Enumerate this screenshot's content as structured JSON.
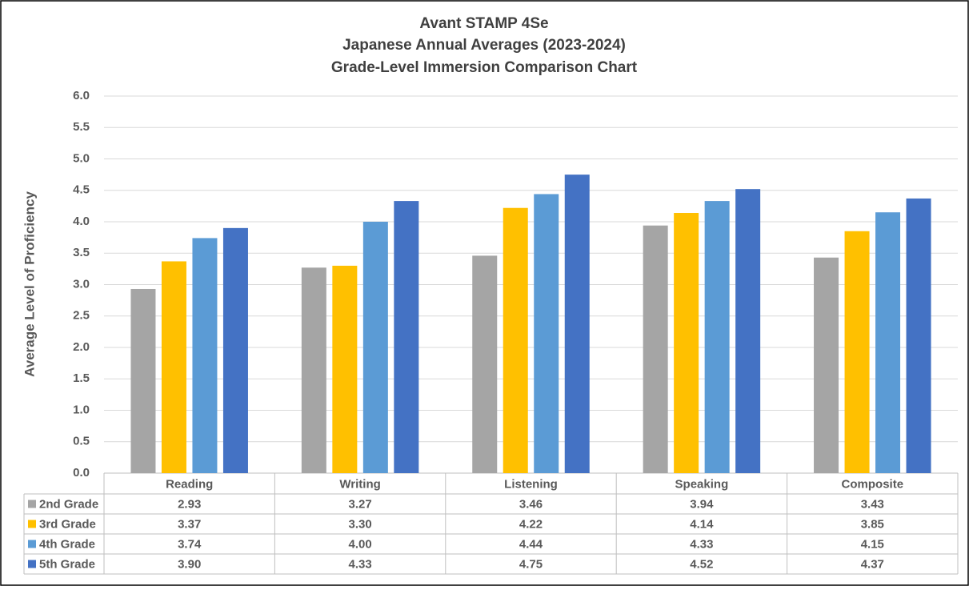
{
  "chart_data": {
    "type": "bar",
    "title": [
      "Avant STAMP 4Se",
      "Japanese Annual Averages (2023-2024)",
      "Grade-Level Immersion Comparison Chart"
    ],
    "y_label": "Average Level of Proficiency",
    "categories": [
      "Reading",
      "Writing",
      "Listening",
      "Speaking",
      "Composite"
    ],
    "series": [
      {
        "name": "2nd Grade",
        "color": "#a5a5a5",
        "values": [
          2.93,
          3.27,
          3.46,
          3.94,
          3.43
        ],
        "value_labels": [
          "2.93",
          "3.27",
          "3.46",
          "3.94",
          "3.43"
        ]
      },
      {
        "name": "3rd Grade",
        "color": "#ffc000",
        "values": [
          3.37,
          3.3,
          4.22,
          4.14,
          3.85
        ],
        "value_labels": [
          "3.37",
          "3.30",
          "4.22",
          "4.14",
          "3.85"
        ]
      },
      {
        "name": "4th Grade",
        "color": "#5b9bd5",
        "values": [
          3.74,
          4.0,
          4.44,
          4.33,
          4.15
        ],
        "value_labels": [
          "3.74",
          "4.00",
          "4.44",
          "4.33",
          "4.15"
        ]
      },
      {
        "name": "5th Grade",
        "color": "#4472c4",
        "values": [
          3.9,
          4.33,
          4.75,
          4.52,
          4.37
        ],
        "value_labels": [
          "3.90",
          "4.33",
          "4.75",
          "4.52",
          "4.37"
        ]
      }
    ],
    "ylim": [
      0,
      6
    ],
    "yticks": [
      {
        "value": 0,
        "label": "0.0"
      },
      0.5,
      {
        "value": 1,
        "label": "1.0"
      },
      1.5,
      {
        "value": 2,
        "label": "2.0"
      },
      2.5,
      {
        "value": 3,
        "label": "3.0"
      },
      3.5,
      {
        "value": 4,
        "label": "4.0"
      },
      4.5,
      {
        "value": 5,
        "label": "5.0"
      },
      5.5,
      {
        "value": 6,
        "label": "6.0"
      }
    ],
    "grid": true
  }
}
